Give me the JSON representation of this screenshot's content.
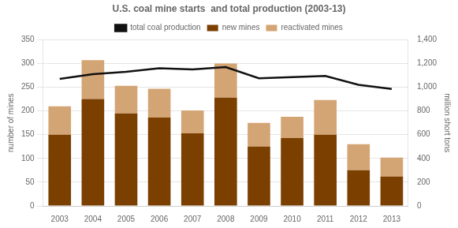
{
  "chart_data": {
    "type": "bar",
    "title": "U.S. coal mine starts  and total production (2003-13)",
    "ylabel": "number of mines",
    "y2label": "million short tons",
    "categories": [
      "2003",
      "2004",
      "2005",
      "2006",
      "2007",
      "2008",
      "2009",
      "2010",
      "2011",
      "2012",
      "2013"
    ],
    "series": [
      {
        "name": "new mines",
        "color": "#7B3F00",
        "values": [
          150,
          225,
          195,
          186,
          153,
          228,
          125,
          143,
          150,
          75,
          62
        ]
      },
      {
        "name": "reactivated mines",
        "color": "#D4A574",
        "values": [
          60,
          82,
          58,
          61,
          48,
          72,
          50,
          45,
          73,
          55,
          40
        ]
      },
      {
        "name": "total coal production",
        "type": "line",
        "axis": "y2",
        "color": "#111111",
        "values": [
          1070,
          1110,
          1130,
          1160,
          1150,
          1170,
          1075,
          1085,
          1095,
          1020,
          985
        ]
      }
    ],
    "stacked": true,
    "ylim": [
      0,
      350
    ],
    "yticks": [
      0,
      50,
      100,
      150,
      200,
      250,
      300,
      350
    ],
    "y2lim": [
      0,
      1400
    ],
    "y2ticks": [
      0,
      200,
      400,
      600,
      800,
      {
        "value": 1000,
        "label": "1,000"
      },
      {
        "value": 1200,
        "label": "1,200"
      },
      {
        "value": 1400,
        "label": "1,400"
      }
    ],
    "grid": true,
    "legend": "top"
  }
}
